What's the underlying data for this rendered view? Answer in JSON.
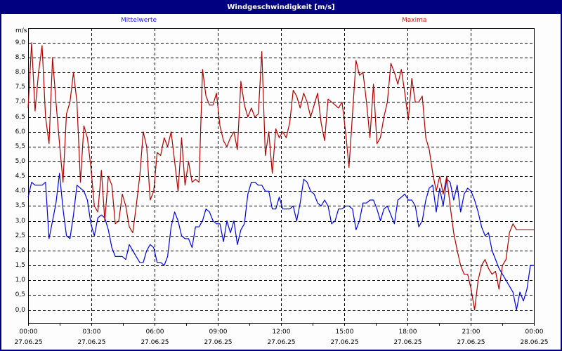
{
  "window": {
    "title": "Windgeschwindigkeit [m/s]",
    "border_color": "#000080",
    "title_bg": "#000080",
    "title_color": "#ffffff"
  },
  "legend": {
    "mean_label": "Mittelwerte",
    "max_label": "Maxima",
    "mean_color": "#0000e0",
    "max_color": "#b00000"
  },
  "y_axis": {
    "unit": "m/s",
    "ticks": [
      "9,0",
      "8,5",
      "8,0",
      "7,5",
      "7,0",
      "6,5",
      "6,0",
      "5,5",
      "5,0",
      "4,5",
      "4,0",
      "3,5",
      "3,0",
      "2,5",
      "2,0",
      "1,5",
      "1,0",
      "0,5",
      "0,0"
    ]
  },
  "x_axis": {
    "ticks": [
      {
        "time": "00:00",
        "date": "27.06.25"
      },
      {
        "time": "03:00",
        "date": "27.06.25"
      },
      {
        "time": "06:00",
        "date": "27.06.25"
      },
      {
        "time": "09:00",
        "date": "27.06.25"
      },
      {
        "time": "12:00",
        "date": "27.06.25"
      },
      {
        "time": "15:00",
        "date": "27.06.25"
      },
      {
        "time": "18:00",
        "date": "27.06.25"
      },
      {
        "time": "21:00",
        "date": "27.06.25"
      },
      {
        "time": "00:00",
        "date": "28.06.25"
      }
    ]
  },
  "chart_data": {
    "type": "line",
    "title": "Windgeschwindigkeit [m/s]",
    "xlabel": "",
    "ylabel": "m/s",
    "ylim": [
      -0.5,
      9.4
    ],
    "xlim_hours": [
      0,
      24
    ],
    "grid": true,
    "legend_position": "top",
    "x_tick_labels": [
      "00:00 27.06.25",
      "03:00 27.06.25",
      "06:00 27.06.25",
      "09:00 27.06.25",
      "12:00 27.06.25",
      "15:00 27.06.25",
      "18:00 27.06.25",
      "21:00 27.06.25",
      "00:00 28.06.25"
    ],
    "sample_interval_minutes": 10,
    "series": [
      {
        "name": "Mittelwerte",
        "color": "#0000e0",
        "values": [
          3.8,
          4.3,
          4.2,
          4.2,
          4.2,
          4.3,
          2.4,
          3.0,
          3.6,
          4.6,
          3.4,
          2.5,
          2.4,
          3.2,
          4.2,
          4.1,
          4.0,
          3.7,
          2.9,
          2.5,
          3.1,
          3.2,
          3.1,
          2.7,
          2.1,
          1.8,
          1.8,
          1.8,
          1.7,
          2.2,
          2.0,
          1.8,
          1.6,
          1.6,
          2.0,
          2.2,
          2.1,
          1.6,
          1.6,
          1.5,
          1.8,
          2.8,
          3.3,
          3.0,
          2.5,
          2.4,
          2.4,
          2.1,
          2.8,
          2.8,
          3.0,
          3.4,
          3.3,
          3.0,
          2.9,
          2.9,
          2.3,
          3.0,
          2.6,
          3.0,
          2.2,
          2.7,
          2.9,
          3.9,
          4.3,
          4.3,
          4.2,
          4.2,
          4.0,
          4.0,
          3.4,
          3.4,
          3.8,
          3.4,
          3.4,
          3.4,
          3.5,
          3.0,
          3.6,
          4.4,
          4.3,
          4.0,
          3.9,
          3.6,
          3.5,
          3.7,
          3.5,
          2.9,
          3.0,
          3.4,
          3.4,
          3.5,
          3.5,
          3.4,
          2.7,
          3.0,
          3.6,
          3.6,
          3.7,
          3.7,
          3.4,
          3.0,
          3.4,
          3.5,
          3.2,
          2.9,
          3.7,
          3.8,
          3.9,
          3.7,
          3.7,
          3.5,
          2.8,
          3.0,
          3.7,
          4.1,
          4.2,
          3.3,
          4.1,
          3.5,
          4.4,
          4.3,
          3.7,
          4.2,
          3.3,
          3.9,
          4.1,
          4.0,
          3.7,
          3.3,
          2.8,
          2.5,
          2.6,
          2.0,
          1.7,
          1.4,
          1.2,
          1.0,
          0.8,
          0.6,
          0.0,
          0.6,
          0.3,
          0.7,
          1.5,
          1.5
        ],
        "note": "values approximate, read from 10-min plotted line"
      },
      {
        "name": "Maxima",
        "color": "#b00000",
        "values": [
          6.8,
          9.0,
          6.7,
          8.0,
          8.9,
          6.5,
          5.6,
          8.5,
          7.0,
          5.6,
          4.3,
          6.6,
          7.0,
          8.0,
          7.0,
          4.3,
          6.2,
          5.8,
          4.8,
          3.5,
          3.3,
          4.7,
          3.0,
          4.5,
          4.2,
          2.9,
          3.0,
          3.9,
          3.5,
          2.8,
          2.6,
          3.5,
          4.5,
          6.0,
          5.5,
          3.7,
          4.0,
          5.3,
          5.2,
          5.8,
          5.5,
          6.0,
          5.0,
          4.0,
          5.8,
          4.2,
          5.0,
          4.3,
          4.4,
          4.3,
          8.1,
          7.2,
          6.9,
          6.9,
          7.3,
          6.2,
          5.7,
          5.5,
          5.8,
          6.0,
          5.4,
          7.7,
          6.9,
          6.5,
          6.8,
          6.5,
          6.6,
          8.7,
          5.2,
          6.0,
          4.6,
          6.1,
          5.8,
          6.0,
          5.8,
          6.3,
          7.4,
          7.2,
          6.8,
          7.3,
          7.0,
          6.5,
          6.9,
          7.3,
          6.3,
          5.7,
          7.1,
          7.0,
          6.9,
          6.8,
          7.0,
          6.0,
          4.8,
          6.6,
          8.4,
          7.9,
          8.0,
          7.0,
          5.8,
          7.6,
          5.6,
          5.8,
          6.5,
          7.0,
          8.3,
          8.0,
          7.6,
          8.1,
          7.3,
          6.4,
          7.8,
          7.0,
          7.0,
          7.2,
          5.8,
          5.4,
          4.6,
          4.0,
          4.5,
          3.9,
          4.5,
          3.5,
          2.6,
          2.0,
          1.5,
          1.2,
          1.2,
          0.7,
          0.0,
          1.0,
          1.5,
          1.7,
          1.4,
          1.2,
          1.3,
          0.7,
          1.5,
          1.7,
          2.6,
          2.9,
          2.7,
          2.7,
          2.7,
          2.7,
          2.7,
          2.7
        ],
        "note": "values approximate, read from 10-min plotted line"
      }
    ]
  }
}
